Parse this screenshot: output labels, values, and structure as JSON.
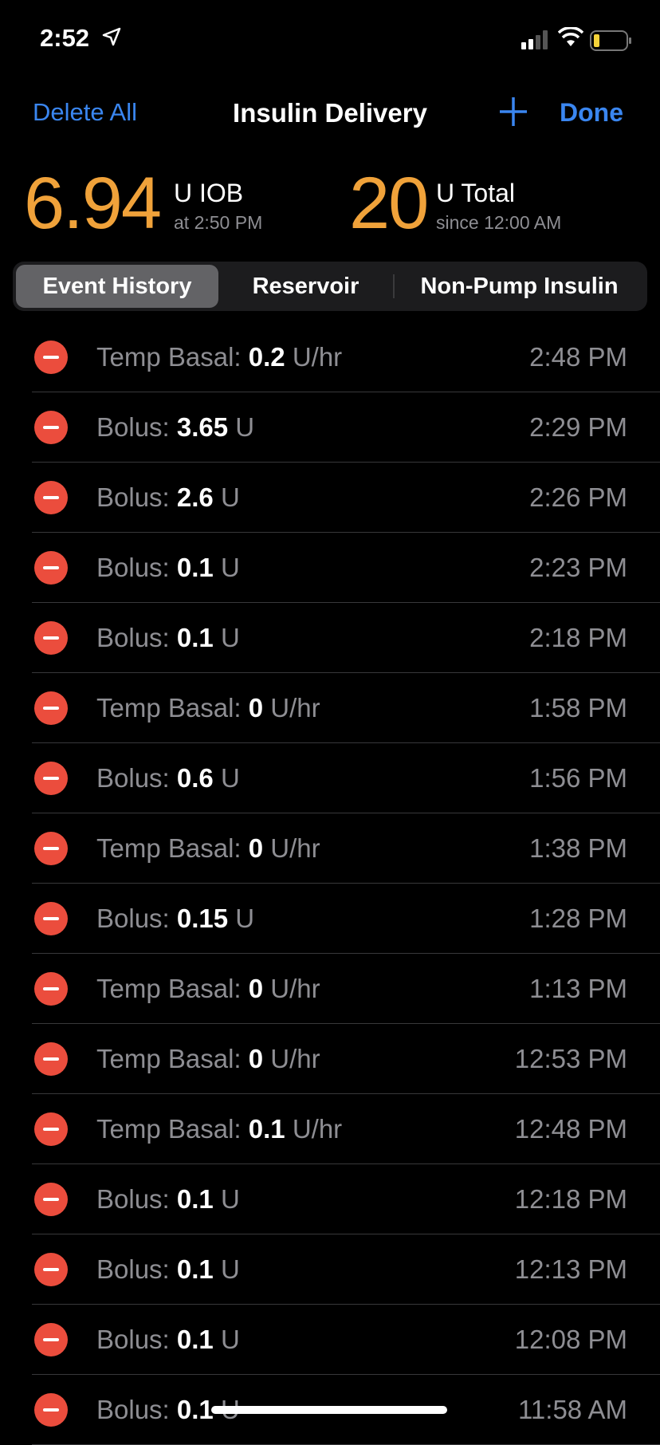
{
  "status_bar": {
    "time": "2:52",
    "icons": [
      "location-arrow-icon",
      "cellular-signal-icon",
      "wifi-icon",
      "battery-low-icon"
    ]
  },
  "nav": {
    "delete_all": "Delete All",
    "title": "Insulin Delivery",
    "add_icon": "plus-icon",
    "done": "Done"
  },
  "summary": {
    "iob": {
      "value": "6.94",
      "unit": "U IOB",
      "sub": "at 2:50 PM"
    },
    "total": {
      "value": "20",
      "unit": "U Total",
      "sub": "since 12:00 AM"
    }
  },
  "segments": {
    "items": [
      "Event History",
      "Reservoir",
      "Non-Pump Insulin"
    ],
    "selected": "Event History"
  },
  "colors": {
    "accent": "#3a86f0",
    "orange": "#f0a23a",
    "delete": "#eb4d3d"
  },
  "events": [
    {
      "type": "Temp Basal:",
      "amount": "0.2",
      "unit": "U/hr",
      "time": "2:48 PM"
    },
    {
      "type": "Bolus:",
      "amount": "3.65",
      "unit": "U",
      "time": "2:29 PM"
    },
    {
      "type": "Bolus:",
      "amount": "2.6",
      "unit": "U",
      "time": "2:26 PM"
    },
    {
      "type": "Bolus:",
      "amount": "0.1",
      "unit": "U",
      "time": "2:23 PM"
    },
    {
      "type": "Bolus:",
      "amount": "0.1",
      "unit": "U",
      "time": "2:18 PM"
    },
    {
      "type": "Temp Basal:",
      "amount": "0",
      "unit": "U/hr",
      "time": "1:58 PM"
    },
    {
      "type": "Bolus:",
      "amount": "0.6",
      "unit": "U",
      "time": "1:56 PM"
    },
    {
      "type": "Temp Basal:",
      "amount": "0",
      "unit": "U/hr",
      "time": "1:38 PM"
    },
    {
      "type": "Bolus:",
      "amount": "0.15",
      "unit": "U",
      "time": "1:28 PM"
    },
    {
      "type": "Temp Basal:",
      "amount": "0",
      "unit": "U/hr",
      "time": "1:13 PM"
    },
    {
      "type": "Temp Basal:",
      "amount": "0",
      "unit": "U/hr",
      "time": "12:53 PM"
    },
    {
      "type": "Temp Basal:",
      "amount": "0.1",
      "unit": "U/hr",
      "time": "12:48 PM"
    },
    {
      "type": "Bolus:",
      "amount": "0.1",
      "unit": "U",
      "time": "12:18 PM"
    },
    {
      "type": "Bolus:",
      "amount": "0.1",
      "unit": "U",
      "time": "12:13 PM"
    },
    {
      "type": "Bolus:",
      "amount": "0.1",
      "unit": "U",
      "time": "12:08 PM"
    },
    {
      "type": "Bolus:",
      "amount": "0.1",
      "unit": "U",
      "time": "11:58 AM"
    }
  ]
}
